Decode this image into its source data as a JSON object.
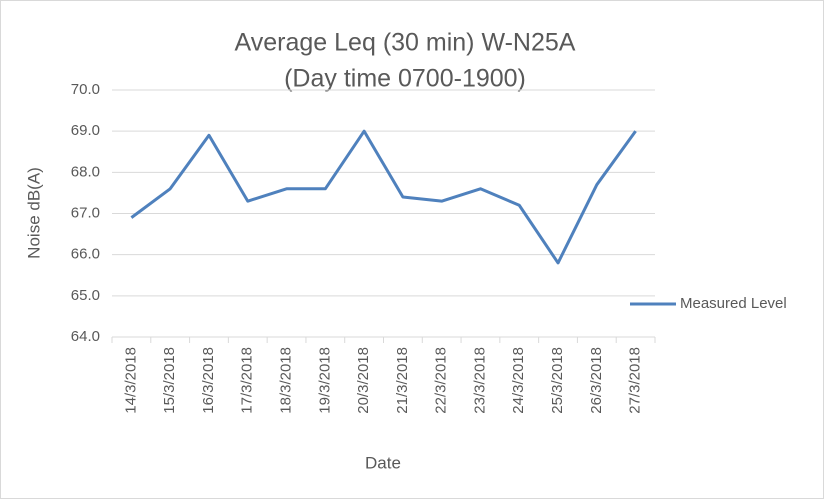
{
  "chart_data": {
    "type": "line",
    "title": [
      "Average Leq (30 min) W-N25A",
      "(Day time 0700-1900)"
    ],
    "x_label": "Date",
    "y_label": "Noise dB(A)",
    "categories": [
      "14/3/2018",
      "15/3/2018",
      "16/3/2018",
      "17/3/2018",
      "18/3/2018",
      "19/3/2018",
      "20/3/2018",
      "21/3/2018",
      "22/3/2018",
      "23/3/2018",
      "24/3/2018",
      "25/3/2018",
      "26/3/2018",
      "27/3/2018"
    ],
    "series": [
      {
        "name": "Measured Level",
        "color": "#4f81bd",
        "values": [
          66.9,
          67.6,
          68.9,
          67.3,
          67.6,
          67.6,
          69.0,
          67.4,
          67.3,
          67.6,
          67.2,
          65.8,
          67.7,
          69.0
        ]
      }
    ],
    "ylim": [
      64,
      70
    ],
    "yticks": [
      {
        "value": 64,
        "label": "64.0"
      },
      {
        "value": 65,
        "label": "65.0"
      },
      {
        "value": 66,
        "label": "66.0"
      },
      {
        "value": 67,
        "label": "67.0"
      },
      {
        "value": 68,
        "label": "68.0"
      },
      {
        "value": 69,
        "label": "69.0"
      },
      {
        "value": 70,
        "label": "70.0"
      }
    ],
    "grid": true,
    "legend": "right"
  }
}
